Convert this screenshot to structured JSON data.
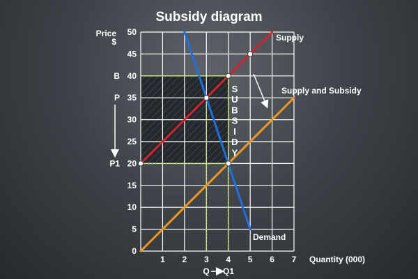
{
  "chart_data": {
    "type": "line",
    "title": "Subsidy diagram",
    "ylabel_lines": [
      "Price",
      "$"
    ],
    "xlabel": "Quantity (000)",
    "xlim": [
      0,
      7
    ],
    "ylim": [
      0,
      50
    ],
    "x_ticks": [
      0,
      1,
      2,
      3,
      4,
      5,
      6,
      7
    ],
    "y_ticks": [
      0,
      5,
      10,
      15,
      20,
      25,
      30,
      35,
      40,
      45,
      50
    ],
    "x_tick_labels": [
      "1",
      "2",
      "3",
      "4",
      "5",
      "6",
      "7"
    ],
    "y_tick_labels": [
      "0",
      "5",
      "10",
      "15",
      "20",
      "25",
      "30",
      "35",
      "40",
      "45",
      "50"
    ],
    "grid": true,
    "series": [
      {
        "name": "Supply",
        "color": "#d9202a",
        "points": [
          [
            0,
            20
          ],
          [
            6,
            50
          ]
        ]
      },
      {
        "name": "Supply and Subsidy",
        "color": "#f0981e",
        "points": [
          [
            0,
            0
          ],
          [
            7,
            35
          ]
        ]
      },
      {
        "name": "Demand",
        "color": "#1f6fe0",
        "points": [
          [
            2,
            50
          ],
          [
            5,
            5
          ]
        ]
      }
    ],
    "markers": [
      {
        "x": 0,
        "y": 20
      },
      {
        "x": 3,
        "y": 35
      },
      {
        "x": 4,
        "y": 40
      },
      {
        "x": 4,
        "y": 20
      },
      {
        "x": 5,
        "y": 45
      }
    ],
    "guide_color": "#b7e04a",
    "guides": [
      {
        "from": [
          0,
          40
        ],
        "to": [
          4,
          40
        ]
      },
      {
        "from": [
          0,
          20
        ],
        "to": [
          4,
          20
        ]
      },
      {
        "from": [
          3,
          0
        ],
        "to": [
          3,
          35
        ]
      },
      {
        "from": [
          4,
          0
        ],
        "to": [
          4,
          40
        ]
      }
    ],
    "subsidy_area": {
      "x": [
        0,
        4
      ],
      "y": [
        20,
        40
      ]
    },
    "price_labels": [
      {
        "text": "B",
        "y": 40
      },
      {
        "text": "P",
        "y": 35
      },
      {
        "text": "P1",
        "y": 20
      }
    ],
    "subsidy_label": [
      "S",
      "U",
      "B",
      "S",
      "I",
      "D",
      "Y"
    ],
    "quantity_label": {
      "from": "Q",
      "to": "Q1"
    }
  }
}
